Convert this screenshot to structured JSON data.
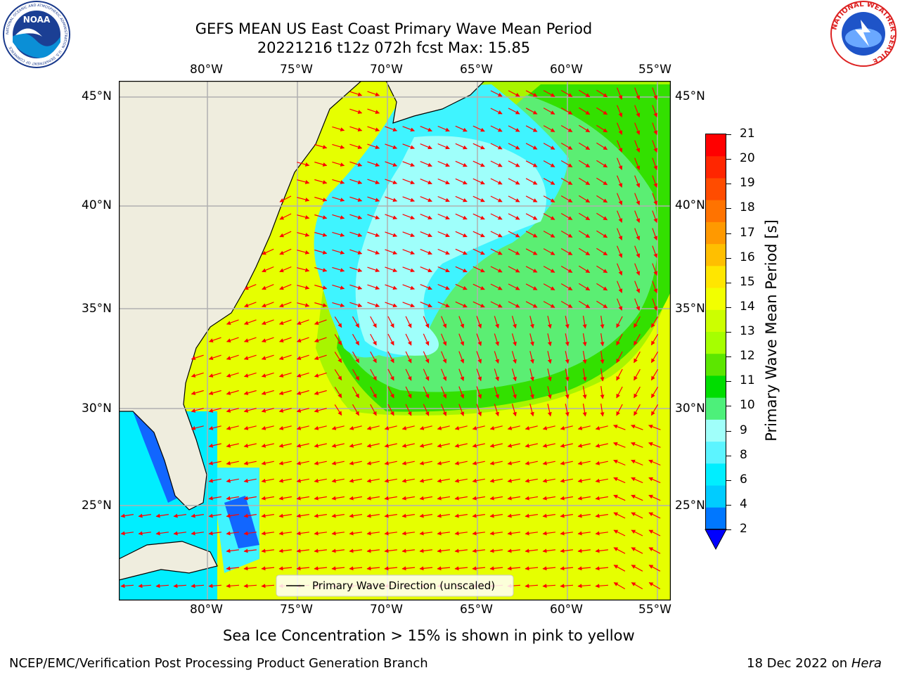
{
  "header": {
    "title_line1": "GEFS MEAN US East Coast Primary Wave Mean Period",
    "title_line2": "20221216 t12z 072h fcst   Max: 15.85"
  },
  "logos": {
    "noaa_center_text": "NOAA",
    "noaa_ring_text": "NATIONAL OCEANIC AND ATMOSPHERIC ADMINISTRATION · U.S. DEPARTMENT OF COMMERCE",
    "nws_ring_text": "NATIONAL WEATHER SERVICE"
  },
  "map": {
    "lon_labels": [
      "80°W",
      "75°W",
      "70°W",
      "65°W",
      "60°W",
      "55°W"
    ],
    "lat_labels": [
      "45°N",
      "40°N",
      "35°N",
      "30°N",
      "25°N"
    ],
    "legend_label": "Primary Wave Direction (unscaled)",
    "land_color": "#efedde",
    "arrow_color": "#ff0000"
  },
  "colorbar": {
    "label": "Primary Wave Mean Period [s]",
    "ticks": [
      "21",
      "20",
      "19",
      "18",
      "17",
      "16",
      "15",
      "14",
      "13",
      "12",
      "11",
      "10",
      "9",
      "8",
      "6",
      "4",
      "2"
    ],
    "colors": [
      "#ff0000",
      "#ff2600",
      "#ff4c00",
      "#ff7300",
      "#ff9900",
      "#ffbf00",
      "#ffe600",
      "#f2ff00",
      "#ccff00",
      "#a6ff00",
      "#5ce600",
      "#00dd00",
      "#4df07a",
      "#a0fffa",
      "#5cf4ff",
      "#00eeff",
      "#00ccff",
      "#0077ff"
    ],
    "under_color": "#0000ff"
  },
  "footer": {
    "sea_ice_note": "Sea Ice Concentration > 15% is shown in pink to yellow",
    "branch": "NCEP/EMC/Verification Post Processing Product Generation Branch",
    "date_prefix": "18 Dec 2022 on ",
    "machine": "Hera"
  }
}
